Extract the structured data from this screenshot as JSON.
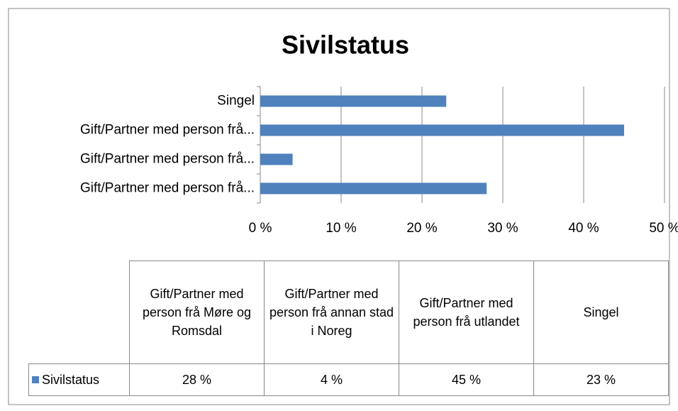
{
  "chart_data": {
    "type": "bar",
    "orientation": "horizontal",
    "title": "Sivilstatus",
    "categories": [
      "Gift/Partner med person frå Møre og Romsdal",
      "Gift/Partner med person frå annan stad i Noreg",
      "Gift/Partner med person frå utlandet",
      "Singel"
    ],
    "category_axis_labels": [
      "Gift/Partner med person frå...",
      "Gift/Partner med person frå...",
      "Gift/Partner med person frå...",
      "Singel"
    ],
    "series": [
      {
        "name": "Sivilstatus",
        "color": "#4f81bd",
        "values": [
          28,
          4,
          45,
          23
        ],
        "value_labels": [
          "28 %",
          "4 %",
          "45 %",
          "23 %"
        ]
      }
    ],
    "xlim": [
      0,
      50
    ],
    "xticks": [
      {
        "value": 0,
        "label": "0 %"
      },
      {
        "value": 10,
        "label": "10 %"
      },
      {
        "value": 20,
        "label": "20 %"
      },
      {
        "value": 30,
        "label": "30 %"
      },
      {
        "value": 40,
        "label": "40 %"
      },
      {
        "value": 50,
        "label": "50 %"
      }
    ],
    "grid": true,
    "data_table": true
  }
}
